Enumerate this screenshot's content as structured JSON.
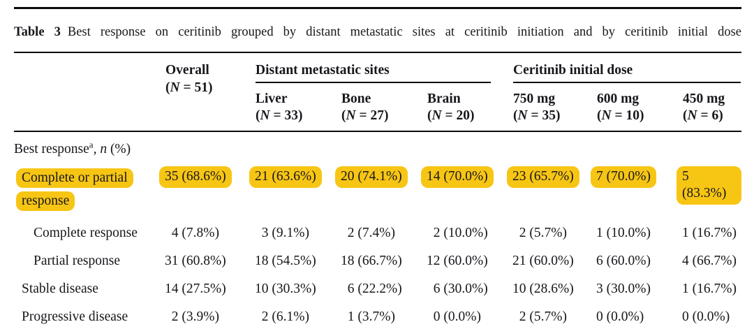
{
  "caption": {
    "label": "Table 3",
    "text": "Best response on ceritinib grouped by distant metastatic sites at ceritinib initiation and by ceritinib initial dose"
  },
  "colors": {
    "highlight": "#F7C514",
    "text": "#17171c",
    "rule": "#0b0b0f"
  },
  "table": {
    "overall": {
      "label": "Overall",
      "n": "(N = 51)"
    },
    "groups": [
      {
        "label": "Distant metastatic sites"
      },
      {
        "label": "Ceritinib initial dose"
      }
    ],
    "columns": [
      {
        "label": "Liver",
        "n": "(N = 33)",
        "group": 0
      },
      {
        "label": "Bone",
        "n": "(N = 27)",
        "group": 0
      },
      {
        "label": "Brain",
        "n": "(N = 20)",
        "group": 0
      },
      {
        "label": "750 mg",
        "n": "(N = 35)",
        "group": 1
      },
      {
        "label": "600 mg",
        "n": "(N = 10)",
        "group": 1
      },
      {
        "label": "450 mg",
        "n": "(N = 6)",
        "group": 1
      }
    ],
    "section": {
      "label": "Best response",
      "superscript": "a",
      "separator": ", ",
      "variable": "n",
      "suffix": " (%)"
    },
    "rows": [
      {
        "label": "Complete or partial response",
        "indent": 1,
        "highlight": true,
        "values": [
          "35 (68.6%)",
          "21 (63.6%)",
          "20 (74.1%)",
          "14 (70.0%)",
          "23 (65.7%)",
          "7 (70.0%)",
          "5 (83.3%)"
        ]
      },
      {
        "label": "Complete response",
        "indent": 2,
        "highlight": false,
        "values": [
          "4 (7.8%)",
          "3 (9.1%)",
          "2 (7.4%)",
          "2 (10.0%)",
          "2 (5.7%)",
          "1 (10.0%)",
          "1 (16.7%)"
        ]
      },
      {
        "label": "Partial response",
        "indent": 2,
        "highlight": false,
        "values": [
          "31 (60.8%)",
          "18 (54.5%)",
          "18 (66.7%)",
          "12 (60.0%)",
          "21 (60.0%)",
          "6 (60.0%)",
          "4 (66.7%)"
        ]
      },
      {
        "label": "Stable disease",
        "indent": 1,
        "highlight": false,
        "values": [
          "14 (27.5%)",
          "10 (30.3%)",
          "6 (22.2%)",
          "6 (30.0%)",
          "10 (28.6%)",
          "3 (30.0%)",
          "1 (16.7%)"
        ]
      },
      {
        "label": "Progressive disease",
        "indent": 1,
        "highlight": false,
        "values": [
          "2 (3.9%)",
          "2 (6.1%)",
          "1 (3.7%)",
          "0 (0.0%)",
          "2 (5.7%)",
          "0 (0.0%)",
          "0 (0.0%)"
        ]
      }
    ]
  }
}
